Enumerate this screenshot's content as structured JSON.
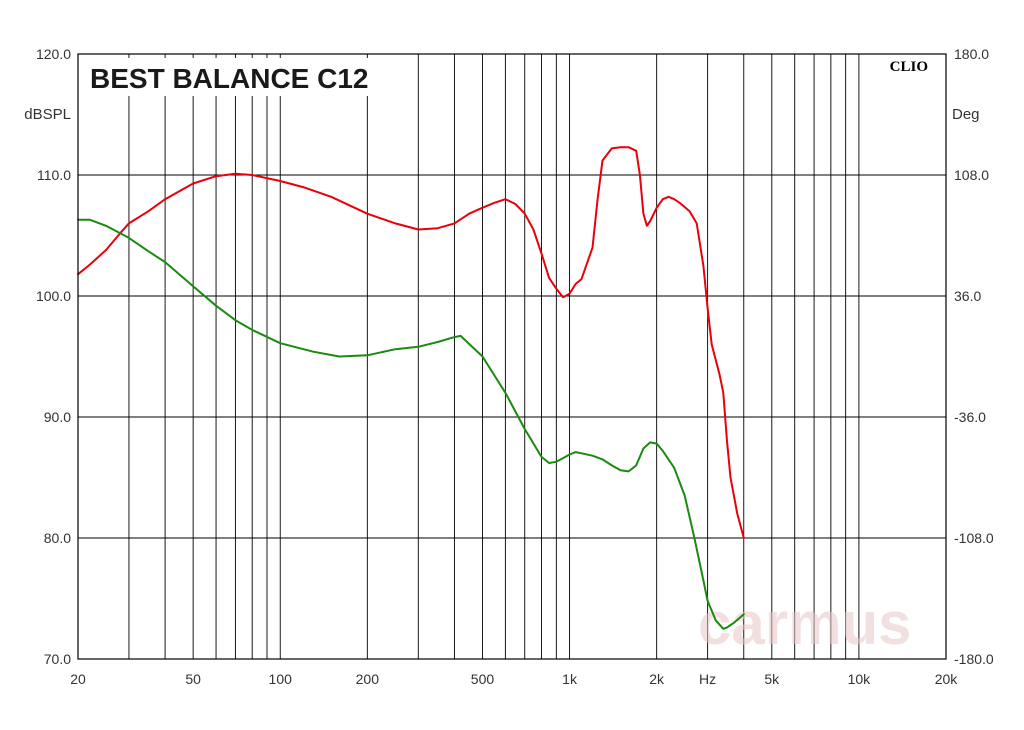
{
  "chart_data": {
    "type": "line",
    "title": "BEST BALANCE C12",
    "brand": "CLIO",
    "watermark": "carmus",
    "x_scale": "log",
    "xlim": [
      20,
      20000
    ],
    "x_tick_labels": [
      {
        "value": 20,
        "label": "20"
      },
      {
        "value": 50,
        "label": "50"
      },
      {
        "value": 100,
        "label": "100"
      },
      {
        "value": 200,
        "label": "200"
      },
      {
        "value": 500,
        "label": "500"
      },
      {
        "value": 1000,
        "label": "1k"
      },
      {
        "value": 2000,
        "label": "2k"
      },
      {
        "value": 3000,
        "label": "Hz"
      },
      {
        "value": 5000,
        "label": "5k"
      },
      {
        "value": 10000,
        "label": "10k"
      },
      {
        "value": 20000,
        "label": "20k"
      }
    ],
    "ylabel": "dBSPL",
    "ylim": [
      70,
      120
    ],
    "y_ticks": [
      "120.0",
      "110.0",
      "100.0",
      "90.0",
      "80.0",
      "70.0"
    ],
    "y2label": "Deg",
    "y2lim": [
      -180,
      180
    ],
    "y2_ticks": [
      "180.0",
      "108.0",
      "36.0",
      "-36.0",
      "-108.0",
      "-180.0"
    ],
    "grid": true,
    "series": [
      {
        "color": "#e8000a",
        "points": [
          [
            20,
            101.8
          ],
          [
            22,
            102.6
          ],
          [
            25,
            103.8
          ],
          [
            28,
            105.2
          ],
          [
            30,
            106.0
          ],
          [
            35,
            107.0
          ],
          [
            40,
            108.0
          ],
          [
            50,
            109.3
          ],
          [
            60,
            109.9
          ],
          [
            70,
            110.1
          ],
          [
            80,
            110.0
          ],
          [
            100,
            109.5
          ],
          [
            120,
            109.0
          ],
          [
            150,
            108.2
          ],
          [
            200,
            106.8
          ],
          [
            250,
            106.0
          ],
          [
            300,
            105.5
          ],
          [
            350,
            105.6
          ],
          [
            400,
            106.0
          ],
          [
            450,
            106.8
          ],
          [
            500,
            107.3
          ],
          [
            550,
            107.7
          ],
          [
            600,
            108.0
          ],
          [
            650,
            107.6
          ],
          [
            700,
            106.8
          ],
          [
            750,
            105.5
          ],
          [
            800,
            103.5
          ],
          [
            850,
            101.5
          ],
          [
            900,
            100.6
          ],
          [
            950,
            99.9
          ],
          [
            1000,
            100.2
          ],
          [
            1050,
            101.0
          ],
          [
            1100,
            101.4
          ],
          [
            1200,
            104.0
          ],
          [
            1250,
            108.0
          ],
          [
            1300,
            111.2
          ],
          [
            1400,
            112.2
          ],
          [
            1500,
            112.3
          ],
          [
            1600,
            112.3
          ],
          [
            1700,
            112.0
          ],
          [
            1750,
            110.0
          ],
          [
            1800,
            106.8
          ],
          [
            1850,
            105.8
          ],
          [
            1900,
            106.2
          ],
          [
            2000,
            107.3
          ],
          [
            2100,
            108.0
          ],
          [
            2200,
            108.2
          ],
          [
            2300,
            108.0
          ],
          [
            2400,
            107.7
          ],
          [
            2600,
            107.0
          ],
          [
            2750,
            106.0
          ],
          [
            2900,
            102.5
          ],
          [
            3000,
            99.0
          ],
          [
            3100,
            96.0
          ],
          [
            3300,
            93.5
          ],
          [
            3400,
            92.0
          ],
          [
            3500,
            88.0
          ],
          [
            3600,
            85.0
          ],
          [
            3800,
            82.0
          ],
          [
            4000,
            80.0
          ]
        ]
      },
      {
        "color": "#1a8a10",
        "points": [
          [
            20,
            106.3
          ],
          [
            22,
            106.3
          ],
          [
            25,
            105.8
          ],
          [
            30,
            104.8
          ],
          [
            35,
            103.7
          ],
          [
            40,
            102.8
          ],
          [
            50,
            100.8
          ],
          [
            60,
            99.2
          ],
          [
            70,
            98.0
          ],
          [
            80,
            97.2
          ],
          [
            100,
            96.1
          ],
          [
            130,
            95.4
          ],
          [
            160,
            95.0
          ],
          [
            200,
            95.1
          ],
          [
            250,
            95.6
          ],
          [
            300,
            95.8
          ],
          [
            350,
            96.2
          ],
          [
            400,
            96.6
          ],
          [
            420,
            96.7
          ],
          [
            500,
            95.0
          ],
          [
            600,
            92.0
          ],
          [
            700,
            89.0
          ],
          [
            800,
            86.7
          ],
          [
            850,
            86.2
          ],
          [
            900,
            86.3
          ],
          [
            950,
            86.6
          ],
          [
            1000,
            86.9
          ],
          [
            1050,
            87.1
          ],
          [
            1100,
            87.0
          ],
          [
            1200,
            86.8
          ],
          [
            1300,
            86.5
          ],
          [
            1400,
            86.0
          ],
          [
            1500,
            85.6
          ],
          [
            1600,
            85.5
          ],
          [
            1700,
            86.0
          ],
          [
            1800,
            87.4
          ],
          [
            1900,
            87.9
          ],
          [
            2000,
            87.8
          ],
          [
            2100,
            87.2
          ],
          [
            2300,
            85.8
          ],
          [
            2500,
            83.5
          ],
          [
            2700,
            80.0
          ],
          [
            2900,
            76.5
          ],
          [
            3000,
            74.8
          ],
          [
            3200,
            73.2
          ],
          [
            3400,
            72.5
          ],
          [
            3500,
            72.6
          ],
          [
            3700,
            73.0
          ],
          [
            4000,
            73.7
          ]
        ]
      }
    ]
  }
}
